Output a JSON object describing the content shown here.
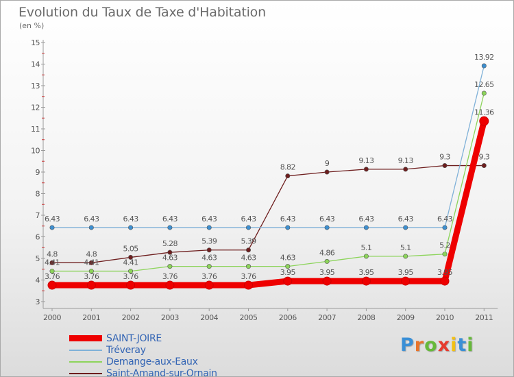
{
  "title": "Evolution du Taux de Taxe d'Habitation",
  "subtitle": "(en %)",
  "logo": {
    "text": "Proxiti",
    "letters": [
      "P",
      "r",
      "o",
      "x",
      "i",
      "t",
      "i"
    ],
    "colors": [
      "#3a8fd6",
      "#e8742b",
      "#66b93a",
      "#e63b2e",
      "#f2c014",
      "#3a8fd6",
      "#66b93a"
    ]
  },
  "chart_data": {
    "type": "line",
    "x": [
      "2000",
      "2001",
      "2002",
      "2003",
      "2004",
      "2005",
      "2006",
      "2007",
      "2008",
      "2009",
      "2010",
      "2011"
    ],
    "ylim": [
      3,
      15
    ],
    "yticks": [
      "3",
      "4",
      "5",
      "6",
      "7",
      "8",
      "9",
      "10",
      "11",
      "12",
      "13",
      "14",
      "15"
    ],
    "grid": false,
    "legend_position": "bottom-left",
    "series": [
      {
        "name": "Saint-Amand-sur-Ornain",
        "color": "#6e1e1e",
        "values": [
          4.8,
          4.8,
          5.05,
          5.28,
          5.39,
          5.39,
          8.82,
          9,
          9.13,
          9.13,
          9.3,
          9.3
        ],
        "labels": [
          "4.8",
          "4.8",
          "5.05",
          "5.28",
          "5.39",
          "5.39",
          "8.82",
          "9",
          "9.13",
          "9.13",
          "9.3",
          "9.3"
        ]
      },
      {
        "name": "Demange-aux-Eaux",
        "color": "#8cd45a",
        "values": [
          4.41,
          4.41,
          4.41,
          4.63,
          4.63,
          4.63,
          4.63,
          4.86,
          5.1,
          5.1,
          5.2,
          12.65
        ],
        "labels": [
          "4.41",
          "4.41",
          "4.41",
          "4.63",
          "4.63",
          "4.63",
          "4.63",
          "4.86",
          "5.1",
          "5.1",
          "5.2",
          "12.65"
        ]
      },
      {
        "name": "Tréveray",
        "color": "#7fb1d8",
        "marker": "#3d8fd0",
        "values": [
          6.43,
          6.43,
          6.43,
          6.43,
          6.43,
          6.43,
          6.43,
          6.43,
          6.43,
          6.43,
          6.43,
          13.92
        ],
        "labels": [
          "6.43",
          "6.43",
          "6.43",
          "6.43",
          "6.43",
          "6.43",
          "6.43",
          "6.43",
          "6.43",
          "6.43",
          "6.43",
          "13.92"
        ]
      },
      {
        "name": "SAINT-JOIRE",
        "color": "#ee0000",
        "highlight": true,
        "values": [
          3.76,
          3.76,
          3.76,
          3.76,
          3.76,
          3.76,
          3.95,
          3.95,
          3.95,
          3.95,
          3.95,
          11.36
        ],
        "labels": [
          "3.76",
          "3.76",
          "3.76",
          "3.76",
          "3.76",
          "3.76",
          "3.95",
          "3.95",
          "3.95",
          "3.95",
          "3.95",
          "11.36"
        ]
      }
    ],
    "legend": [
      "SAINT-JOIRE",
      "Tréveray",
      "Demange-aux-Eaux",
      "Saint-Amand-sur-Ornain"
    ]
  }
}
